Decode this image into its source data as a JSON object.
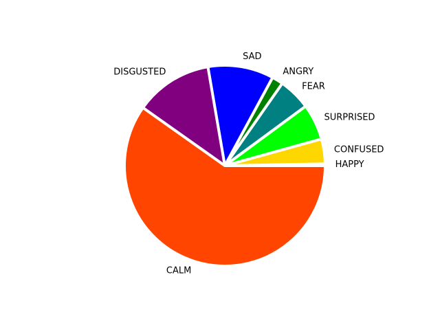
{
  "chart_data": {
    "type": "pie",
    "start_angle_deg": 0,
    "direction": "counterclockwise",
    "legend": "none",
    "slices": [
      {
        "label": "HAPPY",
        "value": 0.3,
        "color": "#ffd700"
      },
      {
        "label": "CONFUSED",
        "value": 4.0,
        "color": "#ffd700"
      },
      {
        "label": "SURPRISED",
        "value": 5.8,
        "color": "#00ff00"
      },
      {
        "label": "FEAR",
        "value": 5.2,
        "color": "#008080"
      },
      {
        "label": "ANGRY",
        "value": 1.8,
        "color": "#008000"
      },
      {
        "label": "SAD",
        "value": 10.6,
        "color": "#0000ff"
      },
      {
        "label": "DISGUSTED",
        "value": 12.5,
        "color": "#800080"
      },
      {
        "label": "CALM",
        "value": 59.8,
        "color": "#ff4500"
      }
    ]
  }
}
